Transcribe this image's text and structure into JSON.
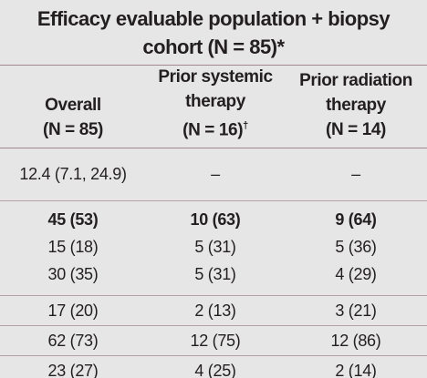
{
  "header": {
    "title_lines": [
      "Efficacy evaluable population + biopsy",
      "cohort (N = 85)*"
    ]
  },
  "table": {
    "columns": [
      {
        "label_lines": [
          "Overall"
        ],
        "n": "(N = 85)"
      },
      {
        "label_lines": [
          "Prior systemic",
          "therapy"
        ],
        "n": "(N = 16)",
        "mark": "†"
      },
      {
        "label_lines": [
          "Prior radiation",
          "therapy"
        ],
        "n": "(N = 14)"
      }
    ],
    "groups": [
      [
        {
          "cells": [
            "12.4 (7.1, 24.9)",
            "–",
            "–"
          ]
        }
      ],
      [
        {
          "cells": [
            "45 (53)",
            "10 (63)",
            "9 (64)"
          ],
          "bold": true
        },
        {
          "cells": [
            "15 (18)",
            "5 (31)",
            "5 (36)"
          ]
        },
        {
          "cells": [
            "30 (35)",
            "5 (31)",
            "4 (29)"
          ]
        }
      ],
      [
        {
          "cells": [
            "17 (20)",
            "2 (13)",
            "3 (21)"
          ]
        }
      ],
      [
        {
          "cells": [
            "62 (73)",
            "12 (75)",
            "12 (86)"
          ]
        }
      ],
      [
        {
          "cells": [
            "23 (27)",
            "4 (25)",
            "2 (14)"
          ]
        }
      ]
    ]
  }
}
